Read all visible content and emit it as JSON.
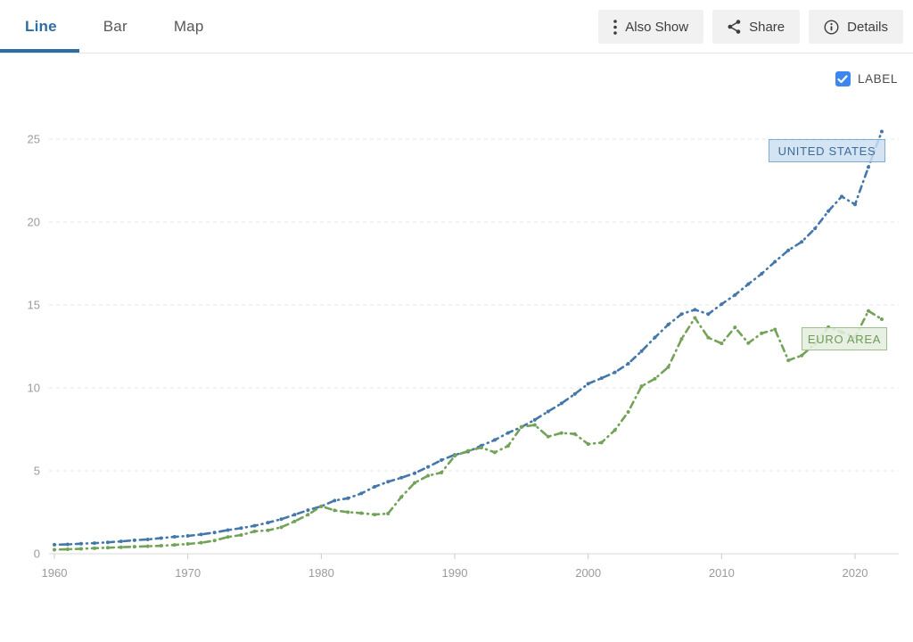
{
  "header": {
    "tabs": [
      {
        "label": "Line",
        "active": true
      },
      {
        "label": "Bar",
        "active": false
      },
      {
        "label": "Map",
        "active": false
      }
    ],
    "buttons": [
      {
        "label": "Also Show",
        "icon": "dots-vertical-icon"
      },
      {
        "label": "Share",
        "icon": "share-icon"
      },
      {
        "label": "Details",
        "icon": "info-icon"
      }
    ]
  },
  "controls": {
    "label_checkbox": {
      "label": "LABEL",
      "checked": true
    }
  },
  "colors": {
    "accent_blue": "#2e6da4",
    "checkbox_blue": "#3d86ef",
    "us_line": "#4478ab",
    "euro_line": "#73a259",
    "grid": "#e4e4e4",
    "axis_text": "#9b9b9b"
  },
  "chart_data": {
    "type": "line",
    "title": "",
    "xlabel": "",
    "ylabel": "",
    "xlim": [
      1960,
      2023
    ],
    "ylim": [
      0,
      26
    ],
    "xticks": [
      1960,
      1970,
      1980,
      1990,
      2000,
      2010,
      2020
    ],
    "yticks": [
      0,
      5,
      10,
      15,
      20,
      25
    ],
    "grid": "horizontal-dashed",
    "legend": "inline-labels-near-lines",
    "line_style": "dash-dot with point markers",
    "x": [
      1960,
      1961,
      1962,
      1963,
      1964,
      1965,
      1966,
      1967,
      1968,
      1969,
      1970,
      1971,
      1972,
      1973,
      1974,
      1975,
      1976,
      1977,
      1978,
      1979,
      1980,
      1981,
      1982,
      1983,
      1984,
      1985,
      1986,
      1987,
      1988,
      1989,
      1990,
      1991,
      1992,
      1993,
      1994,
      1995,
      1996,
      1997,
      1998,
      1999,
      2000,
      2001,
      2002,
      2003,
      2004,
      2005,
      2006,
      2007,
      2008,
      2009,
      2010,
      2011,
      2012,
      2013,
      2014,
      2015,
      2016,
      2017,
      2018,
      2019,
      2020,
      2021,
      2022
    ],
    "series": [
      {
        "name": "UNITED STATES",
        "color": "#4478ab",
        "values": [
          0.543,
          0.563,
          0.605,
          0.639,
          0.686,
          0.744,
          0.815,
          0.862,
          0.943,
          1.02,
          1.073,
          1.165,
          1.279,
          1.425,
          1.545,
          1.685,
          1.873,
          2.082,
          2.352,
          2.627,
          2.857,
          3.207,
          3.344,
          3.634,
          4.038,
          4.339,
          4.58,
          4.855,
          5.236,
          5.642,
          5.963,
          6.158,
          6.52,
          6.859,
          7.287,
          7.64,
          8.073,
          8.578,
          9.063,
          9.631,
          10.251,
          10.582,
          10.936,
          11.458,
          12.214,
          13.037,
          13.815,
          14.452,
          14.713,
          14.449,
          15.049,
          15.6,
          16.254,
          16.881,
          17.608,
          18.295,
          18.804,
          19.612,
          20.657,
          21.54,
          21.06,
          23.315,
          25.46
        ]
      },
      {
        "name": "EURO AREA",
        "color": "#73a259",
        "values": [
          0.245,
          0.27,
          0.299,
          0.331,
          0.363,
          0.392,
          0.422,
          0.451,
          0.481,
          0.529,
          0.589,
          0.663,
          0.794,
          1.009,
          1.128,
          1.35,
          1.409,
          1.596,
          1.951,
          2.351,
          2.862,
          2.612,
          2.509,
          2.446,
          2.362,
          2.42,
          3.424,
          4.276,
          4.702,
          4.893,
          5.9,
          6.2,
          6.4,
          6.11,
          6.5,
          7.65,
          7.76,
          7.06,
          7.28,
          7.22,
          6.61,
          6.7,
          7.45,
          8.55,
          10.1,
          10.55,
          11.25,
          12.95,
          14.22,
          13.03,
          12.68,
          13.65,
          12.7,
          13.29,
          13.52,
          11.66,
          11.95,
          12.67,
          13.66,
          13.36,
          13.05,
          14.64,
          14.14
        ]
      }
    ]
  }
}
